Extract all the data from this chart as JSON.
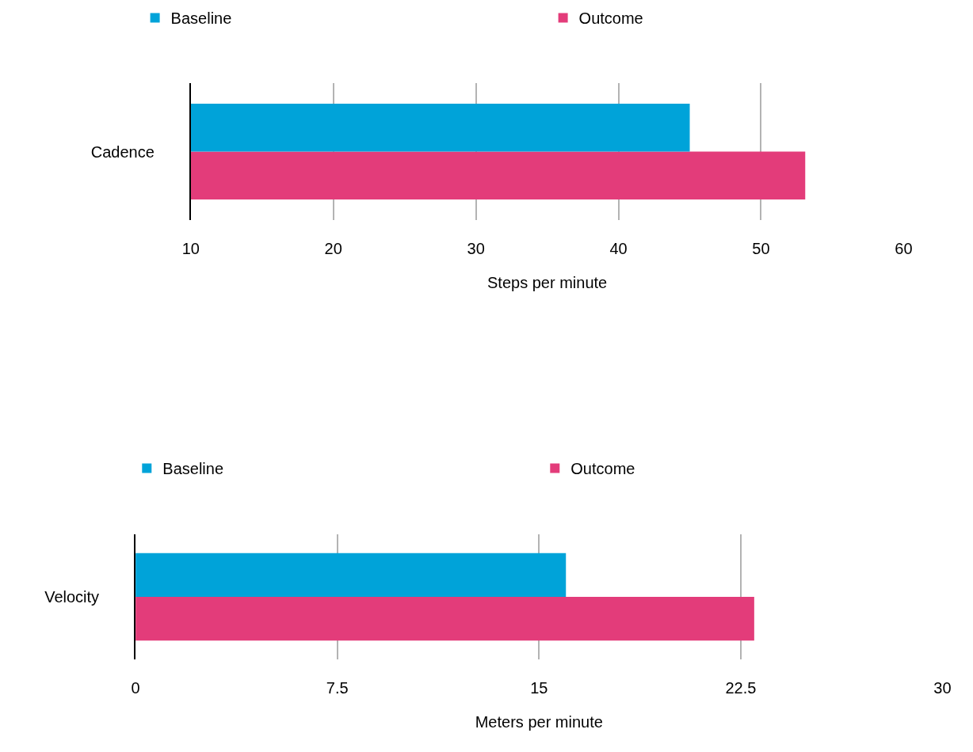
{
  "chart_data": [
    {
      "type": "bar",
      "orientation": "horizontal",
      "categories": [
        "Cadence"
      ],
      "xlabel": "Steps per minute",
      "xlim": [
        10,
        60
      ],
      "xticks": [
        10,
        20,
        30,
        40,
        50,
        60
      ],
      "grid": "x",
      "legend": "top",
      "series": [
        {
          "name": "Baseline",
          "color": "#00a3d9",
          "values": [
            45
          ]
        },
        {
          "name": "Outcome",
          "color": "#e33c7a",
          "values": [
            53.1
          ]
        }
      ]
    },
    {
      "type": "bar",
      "orientation": "horizontal",
      "categories": [
        "Velocity"
      ],
      "xlabel": "Meters per minute",
      "xlim": [
        0,
        30
      ],
      "xticks": [
        0,
        7.5,
        15,
        22.5,
        30
      ],
      "grid": "x",
      "legend": "top",
      "series": [
        {
          "name": "Baseline",
          "color": "#00a3d9",
          "values": [
            16
          ]
        },
        {
          "name": "Outcome",
          "color": "#e33c7a",
          "values": [
            23
          ]
        }
      ]
    }
  ]
}
